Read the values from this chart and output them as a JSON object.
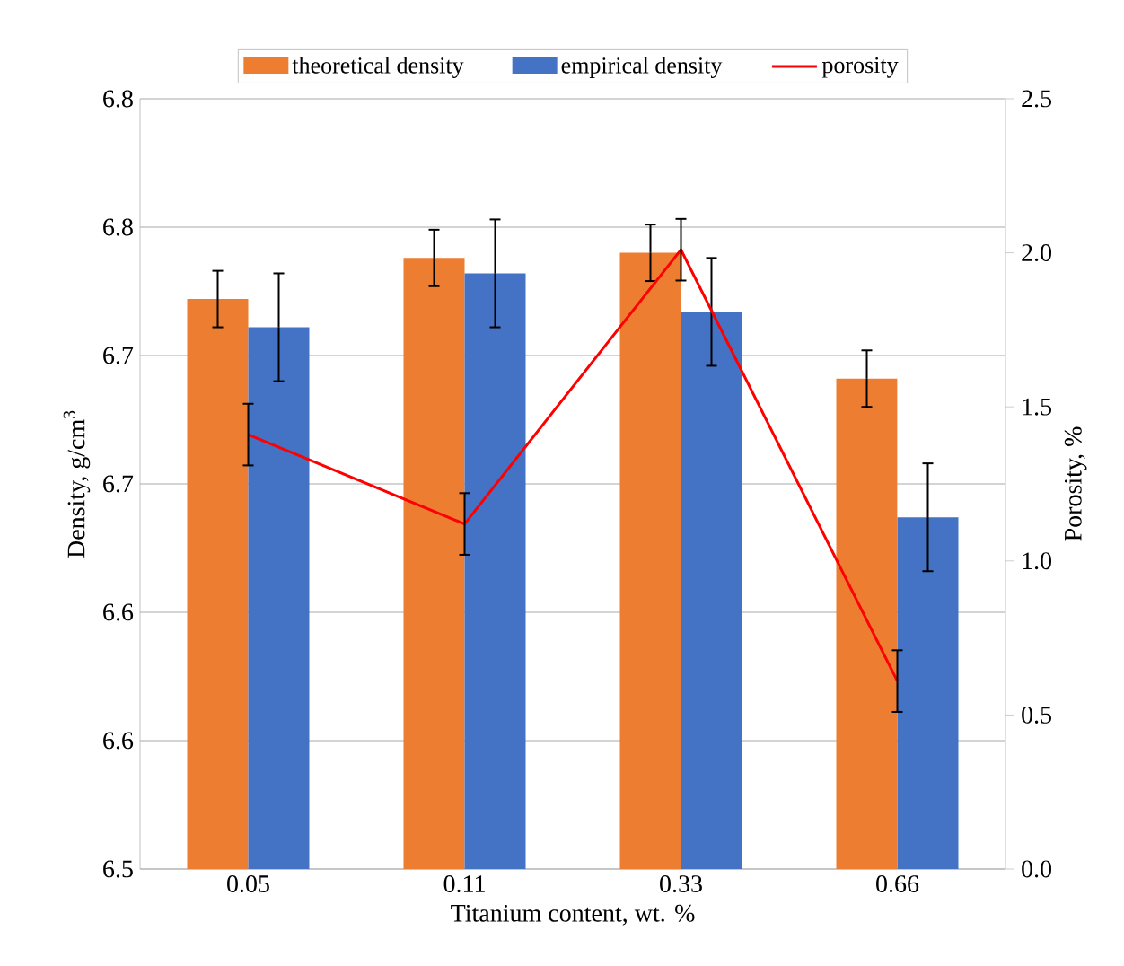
{
  "chart_data": {
    "type": "bar",
    "xlabel": "Titanium content, wt. %",
    "ylabel": "Density, g/cm$^{3}$",
    "y2label": "Porosity, %",
    "categories": [
      "0.05",
      "0.11",
      "0.33",
      "0.66"
    ],
    "series": [
      {
        "name": "theoretical density",
        "color": "#ed7d31",
        "values": [
          6.722,
          6.738,
          6.74,
          6.691
        ],
        "errors": [
          0.011,
          0.011,
          0.011,
          0.011
        ]
      },
      {
        "name": "empirical density",
        "color": "#4472c4",
        "values": [
          6.711,
          6.732,
          6.717,
          6.637
        ],
        "errors": [
          0.021,
          0.021,
          0.021,
          0.021
        ]
      },
      {
        "name": "porosity",
        "type": "line",
        "axis": "y2",
        "color": "#ff0000",
        "values": [
          1.41,
          1.12,
          2.01,
          0.61
        ],
        "errors": [
          0.1,
          0.1,
          0.1,
          0.1
        ]
      }
    ],
    "ylim": [
      6.5,
      6.8
    ],
    "yticks": [
      6.5,
      {
        "value": 6.55,
        "label": "6.6"
      },
      6.6,
      {
        "value": 6.65,
        "label": "6.7"
      },
      6.7,
      {
        "value": 6.75,
        "label": "6.8"
      },
      6.8
    ],
    "y2lim": [
      0,
      2.5
    ],
    "y2ticks": [
      {
        "value": 0,
        "label": "0.0"
      },
      0.5,
      {
        "value": 1,
        "label": "1.0"
      },
      1.5,
      {
        "value": 2,
        "label": "2.0"
      },
      2.5
    ],
    "grid": "y",
    "legend": "top"
  }
}
